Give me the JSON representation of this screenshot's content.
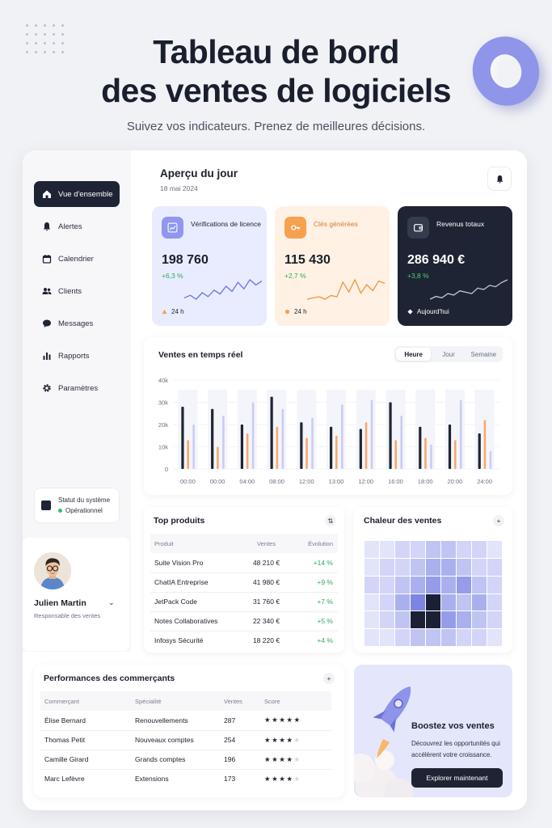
{
  "hero": {
    "title_line1": "Tableau de bord",
    "title_line2": "des ventes de logiciels",
    "subtitle": "Suivez vos indicateurs. Prenez de meilleures décisions."
  },
  "sidebar": {
    "items": [
      {
        "label": "Vue d'ensemble",
        "icon": "home-icon",
        "active": true
      },
      {
        "label": "Alertes",
        "icon": "bell-icon"
      },
      {
        "label": "Calendrier",
        "icon": "calendar-icon"
      },
      {
        "label": "Clients",
        "icon": "users-icon"
      },
      {
        "label": "Messages",
        "icon": "chat-icon"
      },
      {
        "label": "Rapports",
        "icon": "bar-chart-icon"
      },
      {
        "label": "Paramètres",
        "icon": "gear-icon"
      }
    ],
    "status": {
      "title": "Statut du système",
      "value": "Opérationnel",
      "color": "#2fbf6a"
    },
    "user": {
      "name": "Julien Martin",
      "role": "Responsable des ventes"
    }
  },
  "overview": {
    "title": "Aperçu du jour",
    "date": "18 mai 2024"
  },
  "kpis": [
    {
      "label": "Vérifications de licence",
      "value": "198 760",
      "change": "+6,3 %",
      "footer": "24 h",
      "spark": [
        10,
        12,
        9,
        14,
        11,
        16,
        13,
        19,
        15,
        22,
        17,
        24,
        20,
        23
      ]
    },
    {
      "label": "Clés générées",
      "value": "115 430",
      "change": "+2,7 %",
      "footer": "24 h",
      "spark": [
        8,
        9,
        10,
        8,
        11,
        10,
        22,
        14,
        24,
        13,
        20,
        15,
        23,
        21
      ]
    },
    {
      "label": "Revenus totaux",
      "value": "286 940 €",
      "change": "+3,8 %",
      "footer": "Aujourd'hui",
      "spark": [
        8,
        10,
        9,
        12,
        11,
        14,
        13,
        12,
        16,
        15,
        18,
        17,
        20,
        22
      ]
    }
  ],
  "realtime": {
    "title": "Ventes en temps réel",
    "tabs": [
      "Heure",
      "Jour",
      "Semaine"
    ],
    "active_tab": "Heure"
  },
  "chart_data": {
    "type": "bar",
    "title": "Ventes en temps réel",
    "categories": [
      "00:00",
      "00:00",
      "04:00",
      "08:00",
      "12:00",
      "13:00",
      "12:00",
      "16:00",
      "18:00",
      "20:00",
      "24:00"
    ],
    "yticks": [
      "0",
      "10k",
      "20k",
      "30k",
      "40k"
    ],
    "ylim": [
      0,
      40000
    ],
    "series": [
      {
        "color": "#1e2433",
        "values": [
          28000,
          27000,
          20000,
          32500,
          21000,
          19000,
          18000,
          30000,
          19000,
          20000,
          16000
        ]
      },
      {
        "color": "#f5a96a",
        "values": [
          13000,
          10000,
          16000,
          19000,
          14000,
          15000,
          21000,
          13000,
          14000,
          13000,
          22000
        ]
      },
      {
        "color": "#c9ccf6",
        "values": [
          20000,
          24000,
          30000,
          27000,
          23000,
          29000,
          31000,
          24000,
          11000,
          31000,
          8000
        ]
      }
    ]
  },
  "top_products": {
    "title": "Top produits",
    "headers": [
      "Produit",
      "Ventes",
      "Évolution"
    ],
    "rows": [
      [
        "Suite Vision Pro",
        "48 210 €",
        "+14 %"
      ],
      [
        "ChatIA Entreprise",
        "41 980 €",
        "+9 %"
      ],
      [
        "JetPack Code",
        "31 760 €",
        "+7 %"
      ],
      [
        "Notes Collaboratives",
        "22 340 €",
        "+5 %"
      ],
      [
        "Infosys Sécurité",
        "18 220 €",
        "+4 %"
      ]
    ]
  },
  "heatmap": {
    "title": "Chaleur des ventes",
    "levels": [
      [
        1,
        1,
        2,
        2,
        3,
        3,
        2,
        2,
        1
      ],
      [
        1,
        2,
        2,
        3,
        4,
        4,
        3,
        2,
        2
      ],
      [
        2,
        2,
        3,
        4,
        5,
        4,
        5,
        3,
        2
      ],
      [
        1,
        2,
        4,
        6,
        9,
        4,
        3,
        4,
        2
      ],
      [
        1,
        2,
        3,
        9,
        9,
        5,
        4,
        3,
        2
      ],
      [
        1,
        1,
        2,
        3,
        3,
        3,
        2,
        2,
        1
      ]
    ]
  },
  "performance": {
    "title": "Performances des commerçants",
    "headers": [
      "Commerçant",
      "Spécialité",
      "Ventes",
      "Score"
    ],
    "rows": [
      {
        "name": "Élise Bernard",
        "specialty": "Renouvellements",
        "sales": "287",
        "stars": 5
      },
      {
        "name": "Thomas Petit",
        "specialty": "Nouveaux comptes",
        "sales": "254",
        "stars": 4
      },
      {
        "name": "Camille Girard",
        "specialty": "Grands comptes",
        "sales": "196",
        "stars": 4
      },
      {
        "name": "Marc Lefèvre",
        "specialty": "Extensions",
        "sales": "173",
        "stars": 3.5
      }
    ]
  },
  "promo": {
    "title": "Boostez vos ventes",
    "text": "Découvrez les opportunités qui accélèrent votre croissance.",
    "button": "Explorer maintenant"
  }
}
